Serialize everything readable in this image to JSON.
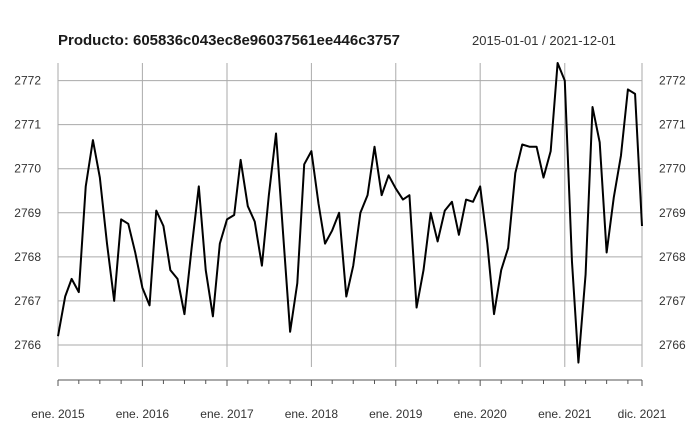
{
  "title": "Producto:  605836c043ec8e96037561ee446c3757",
  "date_range": "2015-01-01 / 2021-12-01",
  "colors": {
    "line": "#000000",
    "grid": "#aaaaaa",
    "axis": "#555555",
    "background": "#ffffff"
  },
  "chart_data": {
    "type": "line",
    "title": "Producto:  605836c043ec8e96037561ee446c3757",
    "subtitle": "2015-01-01 / 2021-12-01",
    "xlabel": "",
    "ylabel": "",
    "grid": true,
    "ylim": [
      2765.5,
      2772.4
    ],
    "xlim": [
      "2015-01-01",
      "2021-12-01"
    ],
    "y_ticks": [
      2766,
      2767,
      2768,
      2769,
      2770,
      2771,
      2772
    ],
    "x_tick_labels": [
      {
        "date": "2015-01-01",
        "label": "ene. 2015"
      },
      {
        "date": "2016-01-01",
        "label": "ene. 2016"
      },
      {
        "date": "2017-01-01",
        "label": "ene. 2017"
      },
      {
        "date": "2018-01-01",
        "label": "ene. 2018"
      },
      {
        "date": "2019-01-01",
        "label": "ene. 2019"
      },
      {
        "date": "2020-01-01",
        "label": "ene. 2020"
      },
      {
        "date": "2021-01-01",
        "label": "ene. 2021"
      },
      {
        "date": "2021-12-01",
        "label": "dic. 2021"
      }
    ],
    "series": [
      {
        "x": [
          "2015-01-01",
          "2015-02-01",
          "2015-03-01",
          "2015-04-01",
          "2015-05-01",
          "2015-06-01",
          "2015-07-01",
          "2015-08-01",
          "2015-09-01",
          "2015-10-01",
          "2015-11-01",
          "2015-12-01",
          "2016-01-01",
          "2016-02-01",
          "2016-03-01",
          "2016-04-01",
          "2016-05-01",
          "2016-06-01",
          "2016-07-01",
          "2016-08-01",
          "2016-09-01",
          "2016-10-01",
          "2016-11-01",
          "2016-12-01",
          "2017-01-01",
          "2017-02-01",
          "2017-03-01",
          "2017-04-01",
          "2017-05-01",
          "2017-06-01",
          "2017-07-01",
          "2017-08-01",
          "2017-09-01",
          "2017-10-01",
          "2017-11-01",
          "2017-12-01",
          "2018-01-01",
          "2018-02-01",
          "2018-03-01",
          "2018-04-01",
          "2018-05-01",
          "2018-06-01",
          "2018-07-01",
          "2018-08-01",
          "2018-09-01",
          "2018-10-01",
          "2018-11-01",
          "2018-12-01",
          "2019-01-01",
          "2019-02-01",
          "2019-03-01",
          "2019-04-01",
          "2019-05-01",
          "2019-06-01",
          "2019-07-01",
          "2019-08-01",
          "2019-09-01",
          "2019-10-01",
          "2019-11-01",
          "2019-12-01",
          "2020-01-01",
          "2020-02-01",
          "2020-03-01",
          "2020-04-01",
          "2020-05-01",
          "2020-06-01",
          "2020-07-01",
          "2020-08-01",
          "2020-09-01",
          "2020-10-01",
          "2020-11-01",
          "2020-12-01",
          "2021-01-01",
          "2021-02-01",
          "2021-03-01",
          "2021-04-01",
          "2021-05-01",
          "2021-06-01",
          "2021-07-01",
          "2021-08-01",
          "2021-09-01",
          "2021-10-01",
          "2021-11-01",
          "2021-12-01"
        ],
        "y": [
          2766.2,
          2767.1,
          2767.5,
          2767.2,
          2769.6,
          2770.65,
          2769.8,
          2768.3,
          2767.0,
          2768.85,
          2768.75,
          2768.1,
          2767.3,
          2766.9,
          2769.05,
          2768.7,
          2767.7,
          2767.5,
          2766.7,
          2768.2,
          2769.6,
          2767.7,
          2766.65,
          2768.3,
          2768.85,
          2768.95,
          2770.2,
          2769.15,
          2768.8,
          2767.8,
          2769.4,
          2770.8,
          2768.5,
          2766.3,
          2767.4,
          2770.1,
          2770.4,
          2769.2,
          2768.3,
          2768.6,
          2769.0,
          2767.1,
          2767.8,
          2769.0,
          2769.4,
          2770.5,
          2769.4,
          2769.85,
          2769.55,
          2769.3,
          2769.4,
          2766.85,
          2767.7,
          2769.0,
          2768.35,
          2769.05,
          2769.25,
          2768.5,
          2769.3,
          2769.25,
          2769.6,
          2768.3,
          2766.7,
          2767.7,
          2768.2,
          2769.9,
          2770.55,
          2770.5,
          2770.5,
          2769.8,
          2770.4,
          2772.4,
          2772.0,
          2767.9,
          2765.6,
          2767.6,
          2771.4,
          2770.6,
          2768.1,
          2769.35,
          2770.3,
          2771.8,
          2771.7,
          2768.7
        ]
      }
    ]
  }
}
